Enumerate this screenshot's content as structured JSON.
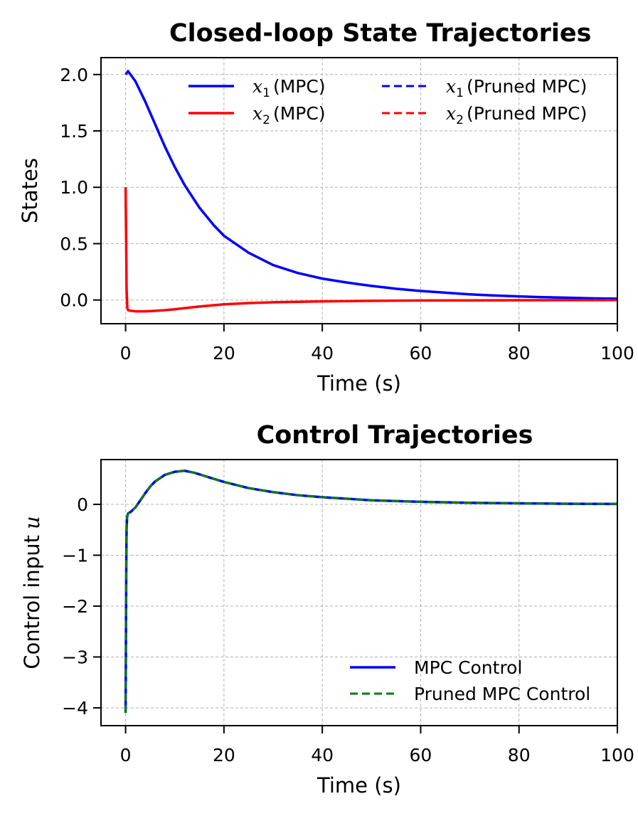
{
  "chart_data": [
    {
      "type": "line",
      "title": "Closed-loop State Trajectories",
      "xlabel": "Time (s)",
      "ylabel": "States",
      "xlim": [
        -5,
        100
      ],
      "ylim": [
        -0.21,
        2.15
      ],
      "xticks": [
        0,
        20,
        40,
        60,
        80,
        100
      ],
      "xtick_labels": [
        "0",
        "20",
        "40",
        "60",
        "80",
        "100"
      ],
      "yticks": [
        0.0,
        0.5,
        1.0,
        1.5,
        2.0
      ],
      "ytick_labels": [
        "0.0",
        "0.5",
        "1.0",
        "1.5",
        "2.0"
      ],
      "grid": true,
      "legend_position": "top-right",
      "legend_columns": 2,
      "series": [
        {
          "name": "x1 (MPC)",
          "symbol": "x",
          "subscript": "1",
          "suffix": "(MPC)",
          "color": "#0000ff",
          "style": "solid",
          "x": [
            0,
            0.5,
            1,
            2,
            4,
            6,
            8,
            10,
            12,
            15,
            18,
            20,
            25,
            30,
            35,
            40,
            45,
            50,
            55,
            60,
            65,
            70,
            75,
            80,
            85,
            90,
            95,
            100
          ],
          "y": [
            2.0,
            2.03,
            2.0,
            1.94,
            1.76,
            1.56,
            1.36,
            1.18,
            1.02,
            0.82,
            0.66,
            0.57,
            0.42,
            0.31,
            0.24,
            0.19,
            0.155,
            0.125,
            0.1,
            0.08,
            0.065,
            0.05,
            0.04,
            0.032,
            0.025,
            0.02,
            0.015,
            0.012
          ]
        },
        {
          "name": "x2 (MPC)",
          "symbol": "x",
          "subscript": "2",
          "suffix": "(MPC)",
          "color": "#ff0000",
          "style": "solid",
          "x": [
            0,
            0.1,
            0.2,
            0.35,
            0.5,
            1,
            2,
            4,
            6,
            8,
            10,
            12,
            15,
            18,
            20,
            25,
            30,
            40,
            50,
            60,
            70,
            80,
            90,
            100
          ],
          "y": [
            1.0,
            0.6,
            0.1,
            -0.07,
            -0.09,
            -0.095,
            -0.1,
            -0.1,
            -0.096,
            -0.09,
            -0.082,
            -0.072,
            -0.058,
            -0.046,
            -0.038,
            -0.027,
            -0.02,
            -0.012,
            -0.007,
            -0.004,
            -0.003,
            -0.002,
            -0.001,
            -0.0005
          ]
        },
        {
          "name": "x1 (Pruned MPC)",
          "symbol": "x",
          "subscript": "1",
          "suffix": "(Pruned MPC)",
          "color": "#0000ff",
          "style": "dashed",
          "x": [
            0,
            0.5,
            1,
            2,
            4,
            6,
            8,
            10,
            12,
            15,
            18,
            20,
            25,
            30,
            35,
            40,
            45,
            50,
            55,
            60,
            65,
            70,
            75,
            80,
            85,
            90,
            95,
            100
          ],
          "y": [
            2.0,
            2.03,
            2.0,
            1.94,
            1.76,
            1.56,
            1.36,
            1.18,
            1.02,
            0.82,
            0.66,
            0.57,
            0.42,
            0.31,
            0.24,
            0.19,
            0.155,
            0.125,
            0.1,
            0.08,
            0.065,
            0.05,
            0.04,
            0.032,
            0.025,
            0.02,
            0.015,
            0.012
          ]
        },
        {
          "name": "x2 (Pruned MPC)",
          "symbol": "x",
          "subscript": "2",
          "suffix": "(Pruned MPC)",
          "color": "#ff0000",
          "style": "dashed",
          "x": [
            0,
            0.1,
            0.2,
            0.35,
            0.5,
            1,
            2,
            4,
            6,
            8,
            10,
            12,
            15,
            18,
            20,
            25,
            30,
            40,
            50,
            60,
            70,
            80,
            90,
            100
          ],
          "y": [
            1.0,
            0.6,
            0.1,
            -0.07,
            -0.09,
            -0.095,
            -0.1,
            -0.1,
            -0.096,
            -0.09,
            -0.082,
            -0.072,
            -0.058,
            -0.046,
            -0.038,
            -0.027,
            -0.02,
            -0.012,
            -0.007,
            -0.004,
            -0.003,
            -0.002,
            -0.001,
            -0.0005
          ]
        }
      ]
    },
    {
      "type": "line",
      "title": "Control Trajectories",
      "xlabel": "Time (s)",
      "ylabel": "Control input",
      "ylabel_symbol": "u",
      "xlim": [
        -5,
        100
      ],
      "ylim": [
        -4.35,
        0.88
      ],
      "xticks": [
        0,
        20,
        40,
        60,
        80,
        100
      ],
      "xtick_labels": [
        "0",
        "20",
        "40",
        "60",
        "80",
        "100"
      ],
      "yticks": [
        -4,
        -3,
        -2,
        -1,
        0
      ],
      "ytick_labels": [
        "−4",
        "−3",
        "−2",
        "−1",
        "0"
      ],
      "grid": true,
      "legend_position": "bottom-right",
      "legend_columns": 1,
      "series": [
        {
          "name": "MPC Control",
          "color": "#0000ff",
          "style": "solid",
          "x": [
            0,
            0.05,
            0.1,
            0.15,
            0.2,
            0.3,
            0.5,
            1,
            2,
            3,
            4,
            5,
            6,
            8,
            10,
            12,
            14,
            16,
            18,
            20,
            25,
            30,
            35,
            40,
            50,
            60,
            70,
            80,
            90,
            100
          ],
          "y": [
            -4.1,
            -3.2,
            -2.0,
            -1.0,
            -0.5,
            -0.25,
            -0.18,
            -0.15,
            -0.06,
            0.08,
            0.22,
            0.35,
            0.45,
            0.58,
            0.64,
            0.66,
            0.62,
            0.56,
            0.5,
            0.44,
            0.32,
            0.24,
            0.18,
            0.14,
            0.08,
            0.05,
            0.03,
            0.02,
            0.012,
            0.008
          ]
        },
        {
          "name": "Pruned MPC Control",
          "color": "#008000",
          "style": "dashed",
          "x": [
            0,
            0.05,
            0.1,
            0.15,
            0.2,
            0.3,
            0.5,
            1,
            2,
            3,
            4,
            5,
            6,
            8,
            10,
            12,
            14,
            16,
            18,
            20,
            25,
            30,
            35,
            40,
            50,
            60,
            70,
            80,
            90,
            100
          ],
          "y": [
            -4.1,
            -3.2,
            -2.0,
            -1.0,
            -0.5,
            -0.25,
            -0.18,
            -0.15,
            -0.06,
            0.08,
            0.22,
            0.35,
            0.45,
            0.58,
            0.64,
            0.66,
            0.62,
            0.56,
            0.5,
            0.44,
            0.32,
            0.24,
            0.18,
            0.14,
            0.08,
            0.05,
            0.03,
            0.02,
            0.012,
            0.008
          ]
        }
      ]
    }
  ]
}
